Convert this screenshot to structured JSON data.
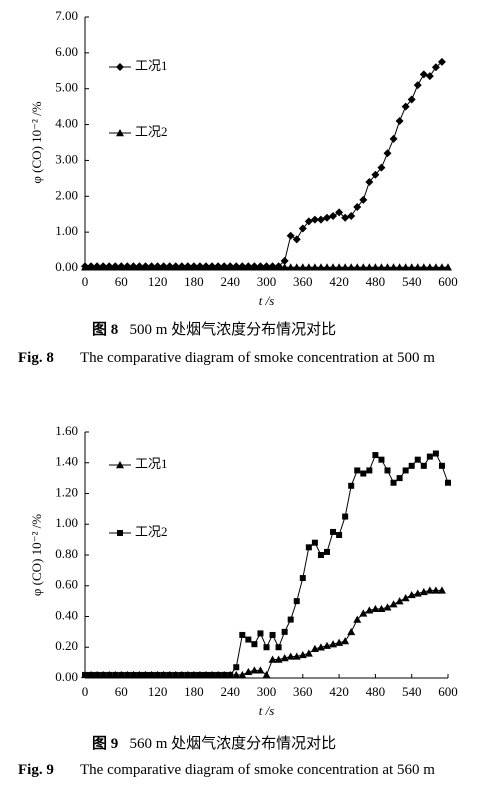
{
  "chart_data": [
    {
      "type": "line",
      "x_label": "t /s",
      "y_label": "φ (CO) 10⁻² /%",
      "xlim": [
        0,
        600
      ],
      "xticks": [
        0,
        60,
        120,
        180,
        240,
        300,
        360,
        420,
        480,
        540,
        600
      ],
      "ylim": [
        0,
        7
      ],
      "yticks": [
        {
          "value": 0,
          "label": "0.00"
        },
        {
          "value": 1,
          "label": "1.00"
        },
        {
          "value": 2,
          "label": "2.00"
        },
        {
          "value": 3,
          "label": "3.00"
        },
        {
          "value": 4,
          "label": "4.00"
        },
        {
          "value": 5,
          "label": "5.00"
        },
        {
          "value": 6,
          "label": "6.00"
        },
        {
          "value": 7,
          "label": "7.00"
        }
      ],
      "x": [
        0,
        10,
        20,
        30,
        40,
        50,
        60,
        70,
        80,
        90,
        100,
        110,
        120,
        130,
        140,
        150,
        160,
        170,
        180,
        190,
        200,
        210,
        220,
        230,
        240,
        250,
        260,
        270,
        280,
        290,
        300,
        310,
        320,
        330,
        340,
        350,
        360,
        370,
        380,
        390,
        400,
        410,
        420,
        430,
        440,
        450,
        460,
        470,
        480,
        490,
        500,
        510,
        520,
        530,
        540,
        550,
        560,
        570,
        580,
        590,
        600
      ],
      "series": [
        {
          "name": "工况1",
          "color": "#000000",
          "marker": "diamond",
          "values": [
            0.05,
            0.05,
            0.05,
            0.05,
            0.05,
            0.05,
            0.05,
            0.05,
            0.05,
            0.05,
            0.05,
            0.05,
            0.05,
            0.05,
            0.05,
            0.05,
            0.05,
            0.05,
            0.05,
            0.05,
            0.05,
            0.05,
            0.05,
            0.05,
            0.05,
            0.05,
            0.05,
            0.05,
            0.05,
            0.05,
            0.05,
            0.05,
            0.05,
            0.2,
            0.9,
            0.8,
            1.1,
            1.3,
            1.35,
            1.35,
            1.4,
            1.45,
            1.55,
            1.4,
            1.45,
            1.7,
            1.9,
            2.4,
            2.6,
            2.8,
            3.2,
            3.6,
            4.1,
            4.5,
            4.7,
            5.1,
            5.4,
            5.35,
            5.6,
            5.75,
            null
          ]
        },
        {
          "name": "工况2",
          "color": "#000000",
          "marker": "triangle",
          "values": [
            0.02,
            0.02,
            0.02,
            0.02,
            0.02,
            0.02,
            0.02,
            0.02,
            0.02,
            0.02,
            0.02,
            0.02,
            0.02,
            0.02,
            0.02,
            0.02,
            0.02,
            0.02,
            0.02,
            0.02,
            0.02,
            0.02,
            0.02,
            0.02,
            0.02,
            0.02,
            0.02,
            0.02,
            0.02,
            0.02,
            0.02,
            0.02,
            0.02,
            0.02,
            0.02,
            0.02,
            0.02,
            0.02,
            0.02,
            0.02,
            0.02,
            0.02,
            0.02,
            0.02,
            0.02,
            0.02,
            0.02,
            0.02,
            0.02,
            0.02,
            0.02,
            0.02,
            0.02,
            0.02,
            0.02,
            0.02,
            0.02,
            0.02,
            0.02,
            0.02,
            0.02
          ]
        }
      ],
      "figure_cn": "图 8",
      "caption_cn": "500 m 处烟气浓度分布情况对比",
      "figure_en": "Fig. 8",
      "caption_en": "The comparative diagram of smoke concentration at 500 m"
    },
    {
      "type": "line",
      "x_label": "t /s",
      "y_label": "φ (CO) 10⁻² /%",
      "xlim": [
        0,
        600
      ],
      "xticks": [
        0,
        60,
        120,
        180,
        240,
        300,
        360,
        420,
        480,
        540,
        600
      ],
      "ylim": [
        0,
        1.6
      ],
      "yticks": [
        {
          "value": 0,
          "label": "0.00"
        },
        {
          "value": 0.2,
          "label": "0.20"
        },
        {
          "value": 0.4,
          "label": "0.40"
        },
        {
          "value": 0.6,
          "label": "0.60"
        },
        {
          "value": 0.8,
          "label": "0.80"
        },
        {
          "value": 1,
          "label": "1.00"
        },
        {
          "value": 1.2,
          "label": "1.20"
        },
        {
          "value": 1.4,
          "label": "1.40"
        },
        {
          "value": 1.6,
          "label": "1.60"
        }
      ],
      "x": [
        0,
        10,
        20,
        30,
        40,
        50,
        60,
        70,
        80,
        90,
        100,
        110,
        120,
        130,
        140,
        150,
        160,
        170,
        180,
        190,
        200,
        210,
        220,
        230,
        240,
        250,
        260,
        270,
        280,
        290,
        300,
        310,
        320,
        330,
        340,
        350,
        360,
        370,
        380,
        390,
        400,
        410,
        420,
        430,
        440,
        450,
        460,
        470,
        480,
        490,
        500,
        510,
        520,
        530,
        540,
        550,
        560,
        570,
        580,
        590,
        600
      ],
      "series": [
        {
          "name": "工况1",
          "color": "#000000",
          "marker": "triangle",
          "values": [
            0.02,
            0.02,
            0.02,
            0.02,
            0.02,
            0.02,
            0.02,
            0.02,
            0.02,
            0.02,
            0.02,
            0.02,
            0.02,
            0.02,
            0.02,
            0.02,
            0.02,
            0.02,
            0.02,
            0.02,
            0.02,
            0.02,
            0.02,
            0.02,
            0.02,
            0.02,
            0.02,
            0.04,
            0.05,
            0.05,
            0.02,
            0.12,
            0.12,
            0.13,
            0.14,
            0.14,
            0.15,
            0.16,
            0.19,
            0.2,
            0.21,
            0.22,
            0.23,
            0.24,
            0.3,
            0.38,
            0.42,
            0.44,
            0.45,
            0.45,
            0.46,
            0.48,
            0.5,
            0.52,
            0.54,
            0.55,
            0.56,
            0.57,
            0.57,
            0.57,
            null
          ]
        },
        {
          "name": "工况2",
          "color": "#000000",
          "marker": "square",
          "values": [
            0.02,
            0.02,
            0.02,
            0.02,
            0.02,
            0.02,
            0.02,
            0.02,
            0.02,
            0.02,
            0.02,
            0.02,
            0.02,
            0.02,
            0.02,
            0.02,
            0.02,
            0.02,
            0.02,
            0.02,
            0.02,
            0.02,
            0.02,
            0.02,
            0.02,
            0.07,
            0.28,
            0.25,
            0.22,
            0.29,
            0.2,
            0.28,
            0.2,
            0.3,
            0.38,
            0.5,
            0.65,
            0.85,
            0.88,
            0.8,
            0.82,
            0.95,
            0.93,
            1.05,
            1.25,
            1.35,
            1.33,
            1.35,
            1.45,
            1.42,
            1.35,
            1.27,
            1.3,
            1.35,
            1.38,
            1.42,
            1.38,
            1.44,
            1.46,
            1.38,
            1.27
          ]
        }
      ],
      "figure_cn": "图 9",
      "caption_cn": "560 m 处烟气浓度分布情况对比",
      "figure_en": "Fig. 9",
      "caption_en": "The comparative diagram of smoke concentration at 560 m"
    }
  ]
}
